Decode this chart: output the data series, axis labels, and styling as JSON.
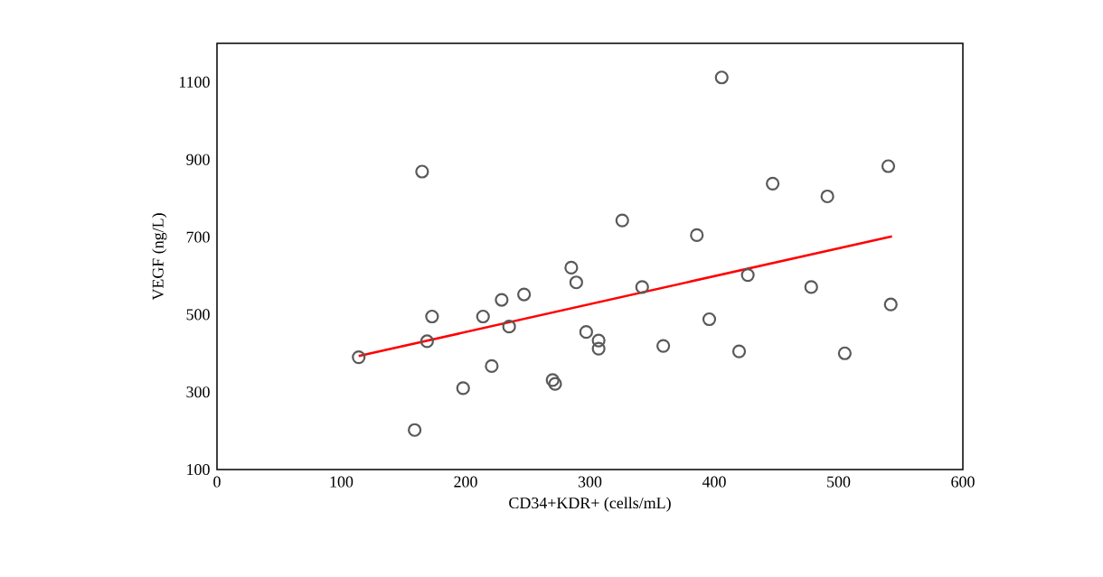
{
  "chart_data": {
    "type": "scatter",
    "xlabel": "CD34+KDR+ (cells/mL)",
    "ylabel": "VEGF (ng/L)",
    "xlim": [
      0,
      600
    ],
    "xticks": [
      0,
      100,
      200,
      300,
      400,
      500,
      600
    ],
    "ylim": [
      100,
      1200
    ],
    "yticks": [
      100,
      300,
      500,
      700,
      900,
      1100
    ],
    "grid": false,
    "series": [
      {
        "marker": "circle",
        "color": "#595959",
        "x": [
          114,
          165,
          159,
          169,
          173,
          198,
          214,
          221,
          229,
          235,
          247,
          270,
          272,
          285,
          289,
          297,
          307,
          307,
          326,
          342,
          359,
          386,
          396,
          406,
          420,
          427,
          447,
          478,
          491,
          505,
          540,
          542
        ],
        "values": [
          390,
          869,
          202,
          431,
          495,
          310,
          495,
          367,
          538,
          469,
          552,
          331,
          321,
          621,
          583,
          455,
          433,
          412,
          743,
          571,
          419,
          705,
          488,
          1112,
          405,
          602,
          838,
          571,
          805,
          400,
          883,
          526
        ]
      },
      {
        "type": "line",
        "marker": "none",
        "color": "#ff0000",
        "x": [
          114,
          543
        ],
        "values": [
          393,
          702
        ]
      }
    ]
  }
}
